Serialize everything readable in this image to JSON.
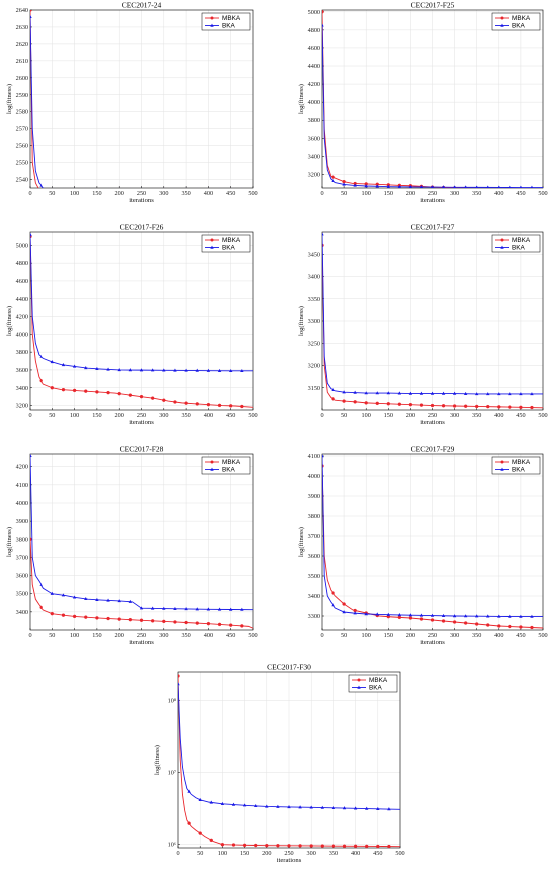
{
  "colors": {
    "MBKA": "#e8262c",
    "BKA": "#1a1ae6"
  },
  "chart_data": [
    {
      "type": "line",
      "title": "CEC2017-24",
      "xlabel": "iterations",
      "ylabel": "log(fitness)",
      "xlim": [
        0,
        500
      ],
      "ylim": [
        2535,
        2640
      ],
      "xticks": [
        0,
        50,
        100,
        150,
        200,
        250,
        300,
        350,
        400,
        450,
        500
      ],
      "yticks": [
        2540,
        2550,
        2560,
        2570,
        2580,
        2590,
        2600,
        2610,
        2620,
        2630,
        2640
      ],
      "grid": true,
      "legend": "top-right",
      "series": [
        {
          "name": "MBKA",
          "x": [
            0,
            5,
            12,
            20,
            30,
            50,
            80,
            120,
            200,
            300,
            400,
            480,
            500
          ],
          "y": [
            2640,
            2550,
            2538,
            2534,
            2534,
            2534,
            2534,
            2534,
            2534,
            2534,
            2534,
            2534,
            2534
          ]
        },
        {
          "name": "BKA",
          "x": [
            0,
            5,
            12,
            20,
            30,
            40,
            50,
            80,
            120,
            200,
            300,
            400,
            480,
            500
          ],
          "y": [
            2636,
            2570,
            2545,
            2538,
            2535,
            2534,
            2534,
            2534,
            2534,
            2534,
            2534,
            2534,
            2534,
            2534
          ]
        }
      ]
    },
    {
      "type": "line",
      "title": "CEC2017-F25",
      "xlabel": "iterations",
      "ylabel": "log(fitness)",
      "xlim": [
        0,
        500
      ],
      "ylim": [
        3050,
        5020
      ],
      "xticks": [
        0,
        50,
        100,
        150,
        200,
        250,
        300,
        350,
        400,
        450,
        500
      ],
      "yticks": [
        3200,
        3400,
        3600,
        3800,
        4000,
        4200,
        4400,
        4600,
        4800,
        5000
      ],
      "grid": true,
      "legend": "top-right",
      "series": [
        {
          "name": "MBKA",
          "x": [
            0,
            5,
            12,
            20,
            30,
            50,
            70,
            100,
            130,
            170,
            200,
            250,
            300,
            350,
            400,
            450,
            500
          ],
          "y": [
            5000,
            3700,
            3300,
            3180,
            3160,
            3120,
            3100,
            3095,
            3090,
            3080,
            3075,
            3060,
            3050,
            3045,
            3040,
            3038,
            3035
          ]
        },
        {
          "name": "BKA",
          "x": [
            0,
            5,
            12,
            20,
            30,
            50,
            70,
            100,
            150,
            200,
            250,
            300,
            350,
            400,
            450,
            500
          ],
          "y": [
            4850,
            3600,
            3250,
            3150,
            3110,
            3090,
            3080,
            3072,
            3065,
            3062,
            3060,
            3058,
            3057,
            3056,
            3055,
            3055
          ]
        }
      ]
    },
    {
      "type": "line",
      "title": "CEC2017-F26",
      "xlabel": "iterations",
      "ylabel": "log(fitness)",
      "xlim": [
        0,
        500
      ],
      "ylim": [
        3150,
        5150
      ],
      "xticks": [
        0,
        50,
        100,
        150,
        200,
        250,
        300,
        350,
        400,
        450,
        500
      ],
      "yticks": [
        3200,
        3400,
        3600,
        3800,
        4000,
        4200,
        4400,
        4600,
        4800,
        5000
      ],
      "grid": true,
      "legend": "top-right",
      "series": [
        {
          "name": "MBKA",
          "x": [
            0,
            5,
            12,
            20,
            30,
            50,
            70,
            100,
            130,
            160,
            190,
            220,
            250,
            280,
            310,
            340,
            370,
            400,
            430,
            460,
            500
          ],
          "y": [
            5100,
            4000,
            3700,
            3520,
            3440,
            3400,
            3380,
            3370,
            3360,
            3350,
            3340,
            3320,
            3300,
            3280,
            3250,
            3230,
            3220,
            3210,
            3200,
            3195,
            3180
          ]
        },
        {
          "name": "BKA",
          "x": [
            0,
            5,
            12,
            20,
            30,
            50,
            70,
            100,
            130,
            160,
            200,
            250,
            300,
            350,
            400,
            450,
            500
          ],
          "y": [
            5120,
            4200,
            3900,
            3770,
            3730,
            3690,
            3660,
            3640,
            3620,
            3610,
            3600,
            3598,
            3596,
            3594,
            3592,
            3590,
            3590
          ]
        }
      ]
    },
    {
      "type": "line",
      "title": "CEC2017-F27",
      "xlabel": "iterations",
      "ylabel": "log(fitness)",
      "xlim": [
        0,
        500
      ],
      "ylim": [
        3100,
        3500
      ],
      "xticks": [
        0,
        50,
        100,
        150,
        200,
        250,
        300,
        350,
        400,
        450,
        500
      ],
      "yticks": [
        3150,
        3200,
        3250,
        3300,
        3350,
        3400,
        3450
      ],
      "grid": true,
      "legend": "top-right",
      "series": [
        {
          "name": "MBKA",
          "x": [
            0,
            5,
            12,
            20,
            30,
            50,
            80,
            100,
            150,
            200,
            250,
            300,
            350,
            400,
            450,
            500
          ],
          "y": [
            3470,
            3200,
            3140,
            3128,
            3122,
            3120,
            3118,
            3116,
            3114,
            3112,
            3110,
            3109,
            3108,
            3107,
            3106,
            3105
          ]
        },
        {
          "name": "BKA",
          "x": [
            0,
            5,
            12,
            20,
            30,
            50,
            80,
            100,
            150,
            200,
            250,
            300,
            350,
            400,
            450,
            500
          ],
          "y": [
            3495,
            3220,
            3160,
            3148,
            3143,
            3140,
            3139,
            3138,
            3138,
            3137,
            3137,
            3137,
            3136,
            3136,
            3136,
            3136
          ]
        }
      ]
    },
    {
      "type": "line",
      "title": "CEC2017-F28",
      "xlabel": "iterations",
      "ylabel": "log(fitness)",
      "xlim": [
        0,
        500
      ],
      "ylim": [
        3300,
        4270
      ],
      "xticks": [
        0,
        50,
        100,
        150,
        200,
        250,
        300,
        350,
        400,
        450,
        500
      ],
      "yticks": [
        3400,
        3500,
        3600,
        3700,
        3800,
        3900,
        4000,
        4100,
        4200
      ],
      "grid": true,
      "legend": "top-right",
      "series": [
        {
          "name": "MBKA",
          "x": [
            0,
            5,
            12,
            20,
            30,
            50,
            80,
            100,
            130,
            160,
            200,
            240,
            280,
            320,
            360,
            400,
            430,
            460,
            490,
            500
          ],
          "y": [
            3800,
            3550,
            3470,
            3440,
            3410,
            3390,
            3380,
            3375,
            3370,
            3365,
            3360,
            3355,
            3350,
            3345,
            3340,
            3335,
            3330,
            3325,
            3320,
            3310
          ]
        },
        {
          "name": "BKA",
          "x": [
            0,
            5,
            12,
            20,
            30,
            50,
            80,
            100,
            130,
            160,
            200,
            230,
            250,
            300,
            350,
            400,
            450,
            500
          ],
          "y": [
            4260,
            3700,
            3600,
            3570,
            3530,
            3500,
            3490,
            3480,
            3470,
            3465,
            3460,
            3455,
            3420,
            3418,
            3416,
            3414,
            3413,
            3412
          ]
        }
      ]
    },
    {
      "type": "line",
      "title": "CEC2017-F29",
      "xlabel": "iterations",
      "ylabel": "log(fitness)",
      "xlim": [
        0,
        500
      ],
      "ylim": [
        3230,
        4110
      ],
      "xticks": [
        0,
        50,
        100,
        150,
        200,
        250,
        300,
        350,
        400,
        450,
        500
      ],
      "yticks": [
        3300,
        3400,
        3500,
        3600,
        3700,
        3800,
        3900,
        4000,
        4100
      ],
      "grid": true,
      "legend": "top-right",
      "series": [
        {
          "name": "MBKA",
          "x": [
            0,
            5,
            12,
            20,
            30,
            50,
            70,
            90,
            110,
            130,
            160,
            200,
            250,
            300,
            350,
            400,
            450,
            500
          ],
          "y": [
            4050,
            3600,
            3480,
            3430,
            3400,
            3360,
            3330,
            3320,
            3310,
            3300,
            3295,
            3290,
            3280,
            3270,
            3260,
            3250,
            3245,
            3240
          ]
        },
        {
          "name": "BKA",
          "x": [
            0,
            5,
            12,
            20,
            30,
            50,
            70,
            100,
            130,
            160,
            200,
            250,
            300,
            350,
            400,
            450,
            500
          ],
          "y": [
            4100,
            3500,
            3400,
            3370,
            3340,
            3320,
            3315,
            3310,
            3308,
            3306,
            3304,
            3302,
            3300,
            3299,
            3298,
            3297,
            3297
          ]
        }
      ]
    },
    {
      "type": "line",
      "title": "CEC2017-F30",
      "xlabel": "iterations",
      "ylabel": "log(fitness)",
      "xlim": [
        0,
        500
      ],
      "yscale": "log",
      "ylim": [
        900000,
        250000000
      ],
      "ytick_labels": [
        "10⁶",
        "10⁷",
        "10⁸"
      ],
      "yticks": [
        1000000,
        10000000,
        100000000
      ],
      "xticks": [
        0,
        50,
        100,
        150,
        200,
        250,
        300,
        350,
        400,
        450,
        500
      ],
      "grid": true,
      "legend": "top-right",
      "series": [
        {
          "name": "MBKA",
          "x": [
            0,
            5,
            10,
            15,
            20,
            30,
            40,
            50,
            60,
            70,
            80,
            90,
            100,
            150,
            200,
            250,
            300,
            350,
            400,
            450,
            500
          ],
          "y": [
            220000000,
            15000000,
            5000000,
            3000000,
            2200000,
            1800000,
            1600000,
            1450000,
            1300000,
            1200000,
            1100000,
            1050000,
            1000000,
            980000,
            970000,
            965000,
            960000,
            955000,
            950000,
            945000,
            940000
          ]
        },
        {
          "name": "BKA",
          "x": [
            0,
            5,
            10,
            15,
            20,
            30,
            40,
            50,
            70,
            100,
            130,
            160,
            200,
            250,
            300,
            350,
            400,
            450,
            500
          ],
          "y": [
            170000000,
            30000000,
            12000000,
            8000000,
            6000000,
            5000000,
            4500000,
            4200000,
            3900000,
            3700000,
            3600000,
            3500000,
            3400000,
            3350000,
            3300000,
            3250000,
            3200000,
            3150000,
            3100000
          ]
        }
      ]
    }
  ]
}
